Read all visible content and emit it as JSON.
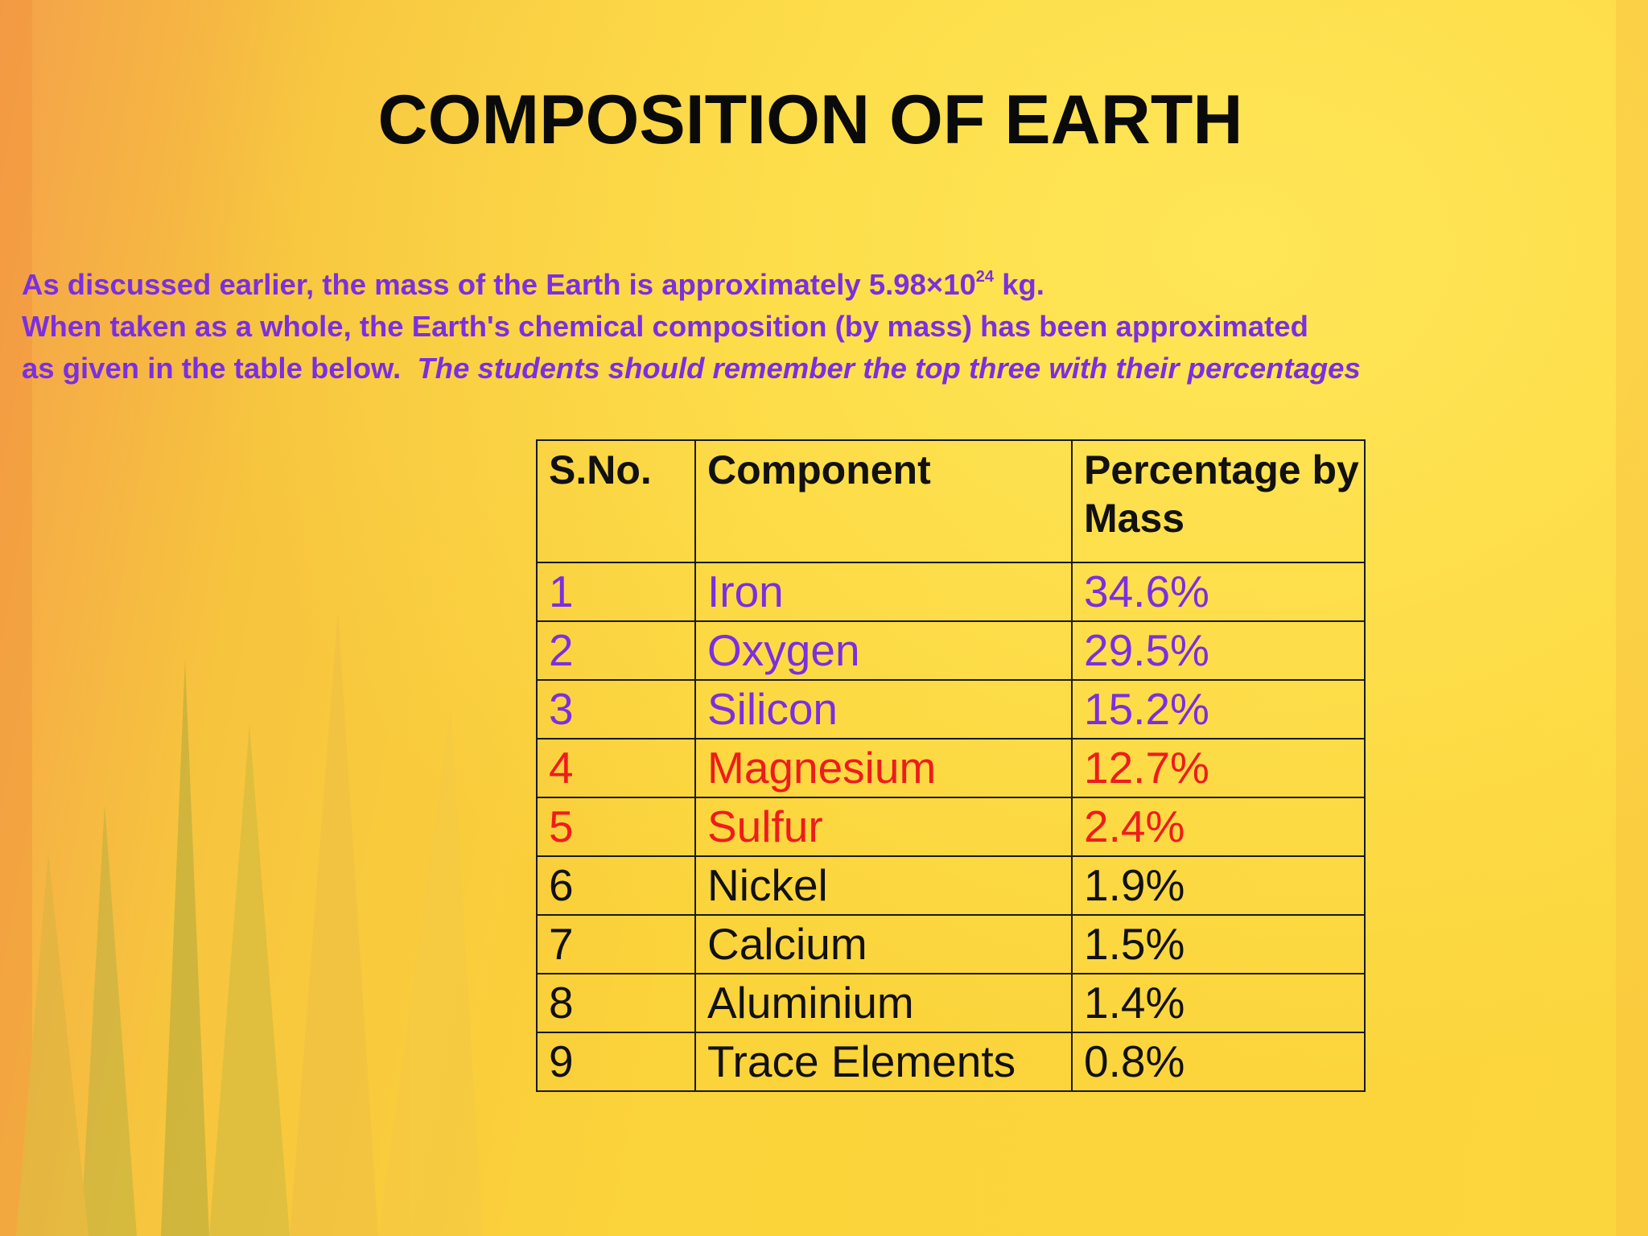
{
  "slide": {
    "title": "COMPOSITION OF EARTH",
    "intro": {
      "line1": {
        "text": "As discussed earlier, the mass of the Earth is approximately 5.98×10",
        "sup": "24",
        "tail": " kg."
      },
      "line2": "When taken as a whole, the Earth's chemical composition (by mass) has been approximated",
      "line3": {
        "text": "as given in the table below.  ",
        "emphasis": "The students should remember the top three with their percentages"
      }
    },
    "table": {
      "header": [
        "S.No.",
        "Component",
        "Percentage by Mass"
      ],
      "rows": [
        {
          "cells": [
            "1",
            "Iron",
            "34.6%"
          ],
          "color": "#7b2fe0"
        },
        {
          "cells": [
            "2",
            "Oxygen",
            "29.5%"
          ],
          "color": "#7b2fe0"
        },
        {
          "cells": [
            "3",
            "Silicon",
            "15.2%"
          ],
          "color": "#7b2fe0"
        },
        {
          "cells": [
            "4",
            "Magnesium",
            "12.7%"
          ],
          "color": "#ee1c1c"
        },
        {
          "cells": [
            "5",
            "Sulfur",
            "2.4%"
          ],
          "color": "#ee1c1c"
        },
        {
          "cells": [
            "6",
            "Nickel",
            "1.9%"
          ],
          "color": "#111111"
        },
        {
          "cells": [
            "7",
            "Calcium",
            "1.5%"
          ],
          "color": "#111111"
        },
        {
          "cells": [
            "8",
            "Aluminium",
            "1.4%"
          ],
          "color": "#111111"
        },
        {
          "cells": [
            "9",
            "Trace Elements",
            "0.8%"
          ],
          "color": "#111111"
        }
      ]
    }
  }
}
